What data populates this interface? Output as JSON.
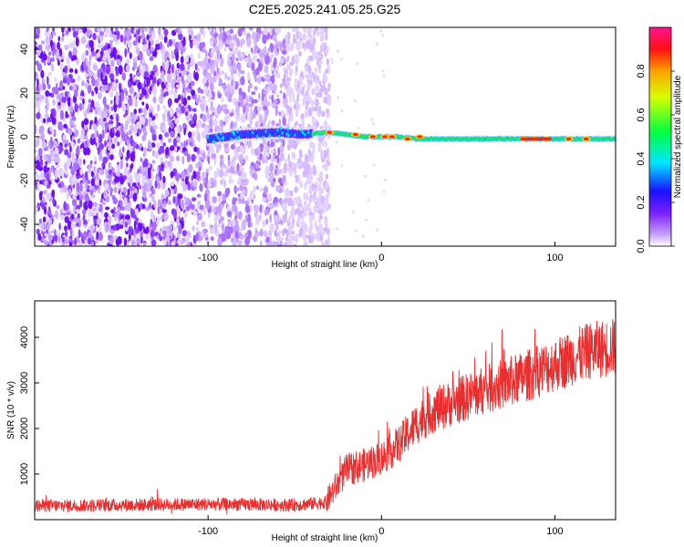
{
  "chart_data": [
    {
      "type": "heatmap",
      "title": "C2E5.2025.241.05.25.G25",
      "xlabel": "Height of straight line (km)",
      "ylabel": "Frequency (Hz)",
      "xlim": [
        -200,
        135
      ],
      "ylim": [
        -50,
        50
      ],
      "xticks": [
        -100,
        0,
        100
      ],
      "yticks": [
        -40,
        -20,
        0,
        20,
        40
      ],
      "noise_region_x": [
        -200,
        -30
      ],
      "signal_track": {
        "x": [
          -100,
          -80,
          -60,
          -45,
          -30,
          -20,
          -10,
          0,
          10,
          20,
          40,
          60,
          80,
          100,
          120,
          135
        ],
        "frequency": [
          -1,
          1,
          2,
          1,
          2,
          1,
          0,
          0,
          0,
          -1,
          -1,
          -1,
          -1,
          -1,
          -1,
          -1
        ]
      },
      "colorbar": {
        "label": "Normalized spectral amplitude",
        "range": [
          0,
          1
        ],
        "ticks": [
          "0.0",
          "0.2",
          "0.4",
          "0.6",
          "0.8"
        ]
      }
    },
    {
      "type": "line",
      "xlabel": "Height of straight line (km)",
      "ylabel": "SNR (10 * v/v)",
      "xlim": [
        -200,
        135
      ],
      "ylim": [
        0,
        4800
      ],
      "xticks": [
        -100,
        0,
        100
      ],
      "yticks": [
        1000,
        2000,
        3000,
        4000
      ],
      "series": [
        {
          "name": "SNR",
          "color": "#e82e2e",
          "x": [
            -200,
            -150,
            -100,
            -50,
            -32,
            -25,
            -20,
            -10,
            0,
            10,
            20,
            30,
            40,
            60,
            80,
            100,
            120,
            135
          ],
          "y": [
            300,
            320,
            340,
            320,
            380,
            800,
            1100,
            1200,
            1350,
            1650,
            2100,
            2400,
            2550,
            2850,
            3100,
            3400,
            3700,
            3800
          ]
        }
      ]
    }
  ]
}
